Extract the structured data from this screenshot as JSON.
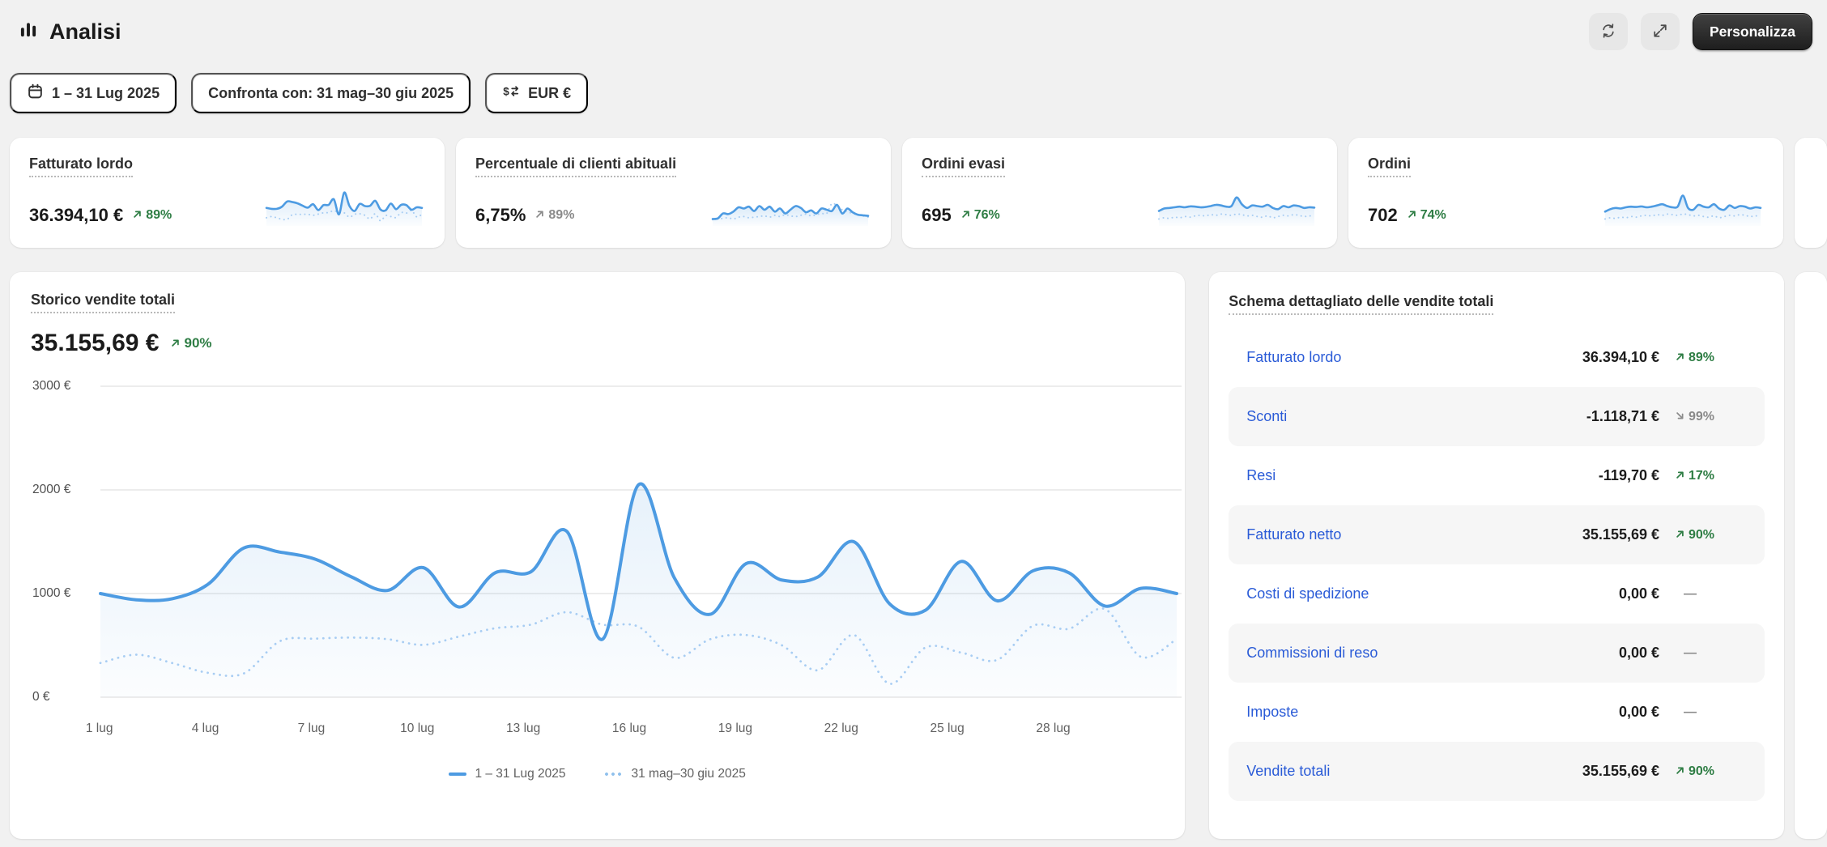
{
  "header": {
    "title": "Analisi",
    "personalize_label": "Personalizza"
  },
  "filters": {
    "date_range": "1 – 31 Lug 2025",
    "compare": "Confronta con: 31 mag–30 giu 2025",
    "currency": "EUR €"
  },
  "icons": {
    "analytics": "bar-chart",
    "calendar": "calendar",
    "currency_exchange": "dollar-with-arrows",
    "refresh": "cycle-arrows",
    "expand": "diagonal-expand-arrows",
    "trend_up": "↗",
    "trend_down": "↘",
    "flat": "—"
  },
  "colors": {
    "page_bg": "#f1f1f1",
    "card_bg": "#ffffff",
    "accent_blue_line": "#4d9be2",
    "compare_blue_dotted": "#a8cdf3",
    "link_blue": "#2a5bd7",
    "positive_green": "#2e7d44",
    "neutral_gray": "#8a8a8a",
    "gridline": "#e6e6e6"
  },
  "kpis": [
    {
      "label": "Fatturato lordo",
      "value": "36.394,10 €",
      "delta": "89%",
      "dir": "up",
      "tone": "positive",
      "spark": [
        48,
        45,
        45,
        52,
        69,
        67,
        63,
        55,
        49,
        60,
        41,
        57,
        58,
        76,
        27,
        98,
        55,
        38,
        61,
        54,
        55,
        71,
        43,
        40,
        62,
        44,
        58,
        57,
        42,
        50,
        48
      ],
      "spark_cmp": [
        16,
        20,
        16,
        11,
        11,
        26,
        27,
        27,
        27,
        24,
        28,
        32,
        33,
        39,
        33,
        32,
        18,
        27,
        29,
        24,
        12,
        29,
        6,
        23,
        20,
        17,
        33,
        31,
        40,
        19,
        27
      ]
    },
    {
      "label": "Percentuale di clienti abituali",
      "value": "6,75%",
      "delta": "89%",
      "dir": "up",
      "tone": "neutral",
      "spark": [
        12,
        14,
        30,
        28,
        36,
        50,
        46,
        52,
        38,
        54,
        42,
        52,
        36,
        46,
        30,
        42,
        54,
        48,
        34,
        40,
        30,
        46,
        42,
        38,
        58,
        30,
        46,
        34,
        26,
        24,
        22
      ],
      "spark_cmp": [
        10,
        12,
        14,
        16,
        12,
        18,
        20,
        16,
        18,
        20,
        22,
        18,
        24,
        20,
        26,
        22,
        20,
        24,
        28,
        22,
        26,
        30,
        30,
        62,
        55,
        42,
        36,
        30,
        26,
        22,
        18
      ]
    },
    {
      "label": "Ordini evasi",
      "value": "695",
      "delta": "76%",
      "dir": "up",
      "tone": "positive",
      "spark": [
        38,
        46,
        48,
        50,
        52,
        50,
        53,
        52,
        50,
        51,
        54,
        58,
        56,
        52,
        54,
        82,
        60,
        48,
        56,
        54,
        52,
        58,
        48,
        44,
        54,
        50,
        56,
        54,
        48,
        50,
        49
      ],
      "spark_cmp": [
        12,
        16,
        14,
        18,
        16,
        20,
        18,
        22,
        24,
        22,
        26,
        24,
        28,
        26,
        24,
        28,
        26,
        22,
        24,
        20,
        18,
        22,
        16,
        20,
        24,
        22,
        26,
        24,
        20,
        22,
        21
      ]
    },
    {
      "label": "Ordini",
      "value": "702",
      "delta": "74%",
      "dir": "up",
      "tone": "positive",
      "spark": [
        36,
        44,
        48,
        46,
        50,
        52,
        51,
        53,
        50,
        52,
        56,
        60,
        54,
        50,
        52,
        88,
        48,
        42,
        58,
        52,
        50,
        60,
        46,
        42,
        56,
        48,
        54,
        52,
        46,
        50,
        48
      ],
      "spark_cmp": [
        12,
        16,
        14,
        18,
        16,
        20,
        18,
        22,
        24,
        22,
        26,
        24,
        28,
        26,
        24,
        28,
        26,
        22,
        24,
        20,
        18,
        22,
        16,
        20,
        24,
        22,
        26,
        24,
        20,
        22,
        21
      ]
    }
  ],
  "sales_chart": {
    "title": "Storico vendite totali",
    "value": "35.155,69 €",
    "delta": "90%",
    "dir": "up",
    "tone": "positive",
    "legend_current": "1 – 31 Lug 2025",
    "legend_compare": "31 mag–30 giu 2025"
  },
  "chart_data": {
    "type": "line",
    "title": "Storico vendite totali",
    "ylabel": "EUR",
    "ylim": [
      0,
      3000
    ],
    "days": 31,
    "grid": true,
    "legend_position": "bottom",
    "y_ticks": [
      {
        "label": "3000 €",
        "value": 3000
      },
      {
        "label": "2000 €",
        "value": 2000
      },
      {
        "label": "1000 €",
        "value": 1000
      },
      {
        "label": "0 €",
        "value": 0
      }
    ],
    "x_ticks": [
      {
        "day": 1,
        "label": "1 lug"
      },
      {
        "day": 4,
        "label": "4 lug"
      },
      {
        "day": 7,
        "label": "7 lug"
      },
      {
        "day": 10,
        "label": "10 lug"
      },
      {
        "day": 13,
        "label": "13 lug"
      },
      {
        "day": 16,
        "label": "16 lug"
      },
      {
        "day": 19,
        "label": "19 lug"
      },
      {
        "day": 22,
        "label": "22 lug"
      },
      {
        "day": 25,
        "label": "25 lug"
      },
      {
        "day": 28,
        "label": "28 lug"
      }
    ],
    "series": [
      {
        "name": "1 – 31 Lug 2025",
        "style": "solid",
        "color": "#4d9be2",
        "values": [
          1000,
          940,
          950,
          1090,
          1440,
          1400,
          1330,
          1160,
          1030,
          1250,
          870,
          1200,
          1210,
          1600,
          560,
          2050,
          1150,
          800,
          1290,
          1130,
          1160,
          1500,
          900,
          840,
          1310,
          930,
          1220,
          1200,
          880,
          1050,
          1000
        ]
      },
      {
        "name": "31 mag–30 giu 2025",
        "style": "dotted",
        "color": "#a8cdf3",
        "values": [
          330,
          410,
          330,
          235,
          230,
          540,
          565,
          575,
          560,
          505,
          585,
          665,
          700,
          820,
          700,
          680,
          380,
          560,
          600,
          500,
          260,
          600,
          130,
          480,
          430,
          360,
          690,
          660,
          850,
          390,
          560
        ]
      }
    ]
  },
  "detail_panel": {
    "title": "Schema dettagliato delle vendite totali",
    "rows": [
      {
        "label": "Fatturato lordo",
        "value": "36.394,10 €",
        "delta": "89%",
        "dir": "up",
        "tone": "positive"
      },
      {
        "label": "Sconti",
        "value": "-1.118,71 €",
        "delta": "99%",
        "dir": "down",
        "tone": "neutral"
      },
      {
        "label": "Resi",
        "value": "-119,70 €",
        "delta": "17%",
        "dir": "up",
        "tone": "positive"
      },
      {
        "label": "Fatturato netto",
        "value": "35.155,69 €",
        "delta": "90%",
        "dir": "up",
        "tone": "positive"
      },
      {
        "label": "Costi di spedizione",
        "value": "0,00 €",
        "delta": "",
        "dir": "flat",
        "tone": "neutral"
      },
      {
        "label": "Commissioni di reso",
        "value": "0,00 €",
        "delta": "",
        "dir": "flat",
        "tone": "neutral"
      },
      {
        "label": "Imposte",
        "value": "0,00 €",
        "delta": "",
        "dir": "flat",
        "tone": "neutral"
      },
      {
        "label": "Vendite totali",
        "value": "35.155,69 €",
        "delta": "90%",
        "dir": "up",
        "tone": "positive"
      }
    ]
  }
}
